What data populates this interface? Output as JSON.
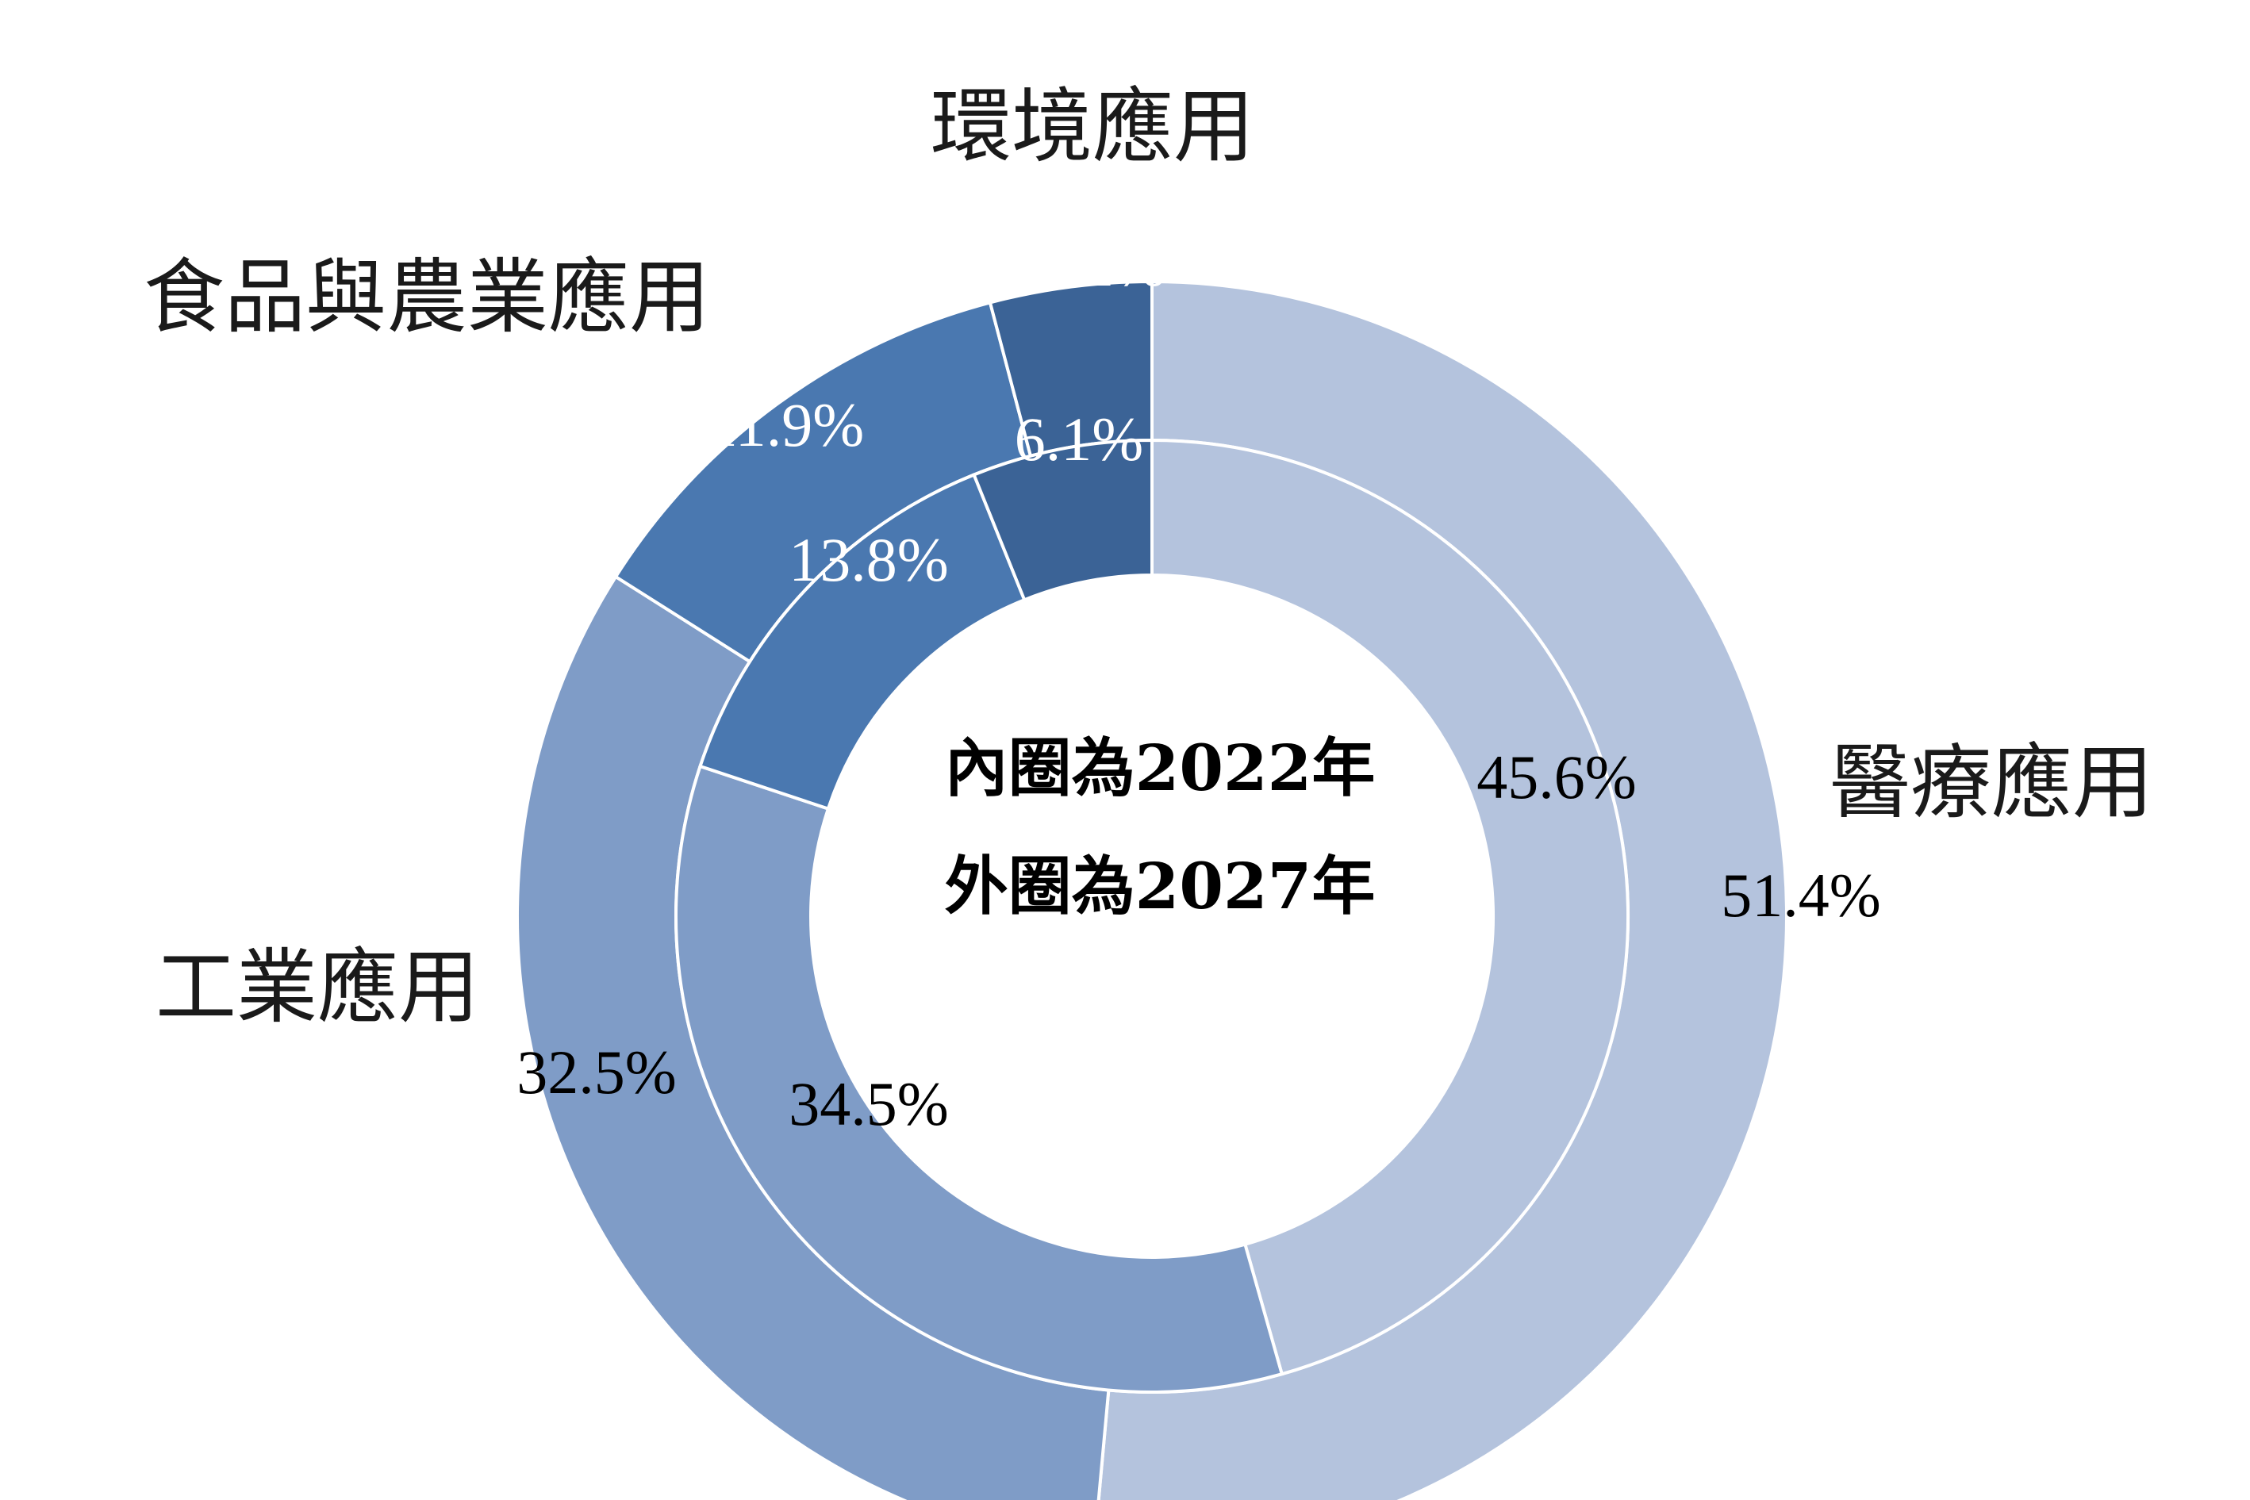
{
  "chart_data": {
    "type": "donut",
    "start_angle_deg": 0,
    "direction": "clockwise",
    "categories": [
      "醫療應用",
      "工業應用",
      "食品與農業應用",
      "環境應用"
    ],
    "colors": [
      "#b4c3dd",
      "#7f9cc7",
      "#4a78b0",
      "#3b6396"
    ],
    "series": [
      {
        "ring": "inner",
        "values": [
          45.6,
          34.5,
          13.8,
          6.1
        ],
        "labels": [
          "45.6%",
          "34.5%",
          "13.8%",
          "6.1%"
        ]
      },
      {
        "ring": "outer",
        "values": [
          51.4,
          32.5,
          11.9,
          4.1
        ],
        "labels": [
          "51.4%",
          "32.5%",
          "11.9%",
          "4.1%"
        ]
      }
    ],
    "center_text": [
      "內圈為2022年",
      "外圈為2027年"
    ]
  }
}
